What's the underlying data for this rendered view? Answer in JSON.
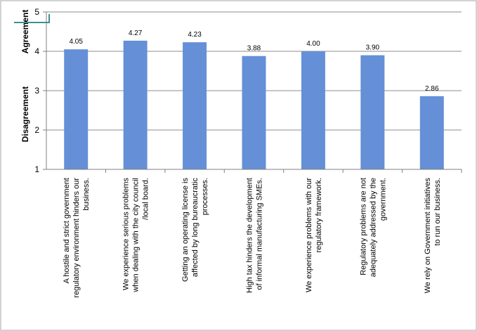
{
  "chart_data": {
    "type": "bar",
    "title": "",
    "xlabel": "",
    "ylabel": "",
    "ylim": [
      1,
      5
    ],
    "yticks": [
      1,
      2,
      3,
      4,
      5
    ],
    "grid": true,
    "bar_color": "#6590d7",
    "grid_color": "#8c8c8c",
    "band_labels": {
      "upper": "Agreement",
      "lower": "Disagreement"
    },
    "categories": [
      [
        "A hostile and strict government",
        "regulatory environment hinders our",
        "business."
      ],
      [
        "We experience serious problems",
        "when dealing with the city council",
        "/local    board."
      ],
      [
        "Getting an operating license is",
        "affected by long bureaucratic",
        "processes."
      ],
      [
        "High tax hinders the development",
        "of informal manufacturing SMEs."
      ],
      [
        "We experience problems with our",
        "regulatory framework."
      ],
      [
        "Regulatory problems are not",
        "adequately addressed by the",
        "government."
      ],
      [
        "We rely on Government initiatives",
        "to run our business."
      ]
    ],
    "values": [
      4.05,
      4.27,
      4.23,
      3.88,
      4.0,
      3.9,
      2.86
    ],
    "data_labels": [
      "4.05",
      "4.27",
      "4.23",
      "3.88",
      "4.00",
      "3.90",
      "2.86"
    ]
  }
}
